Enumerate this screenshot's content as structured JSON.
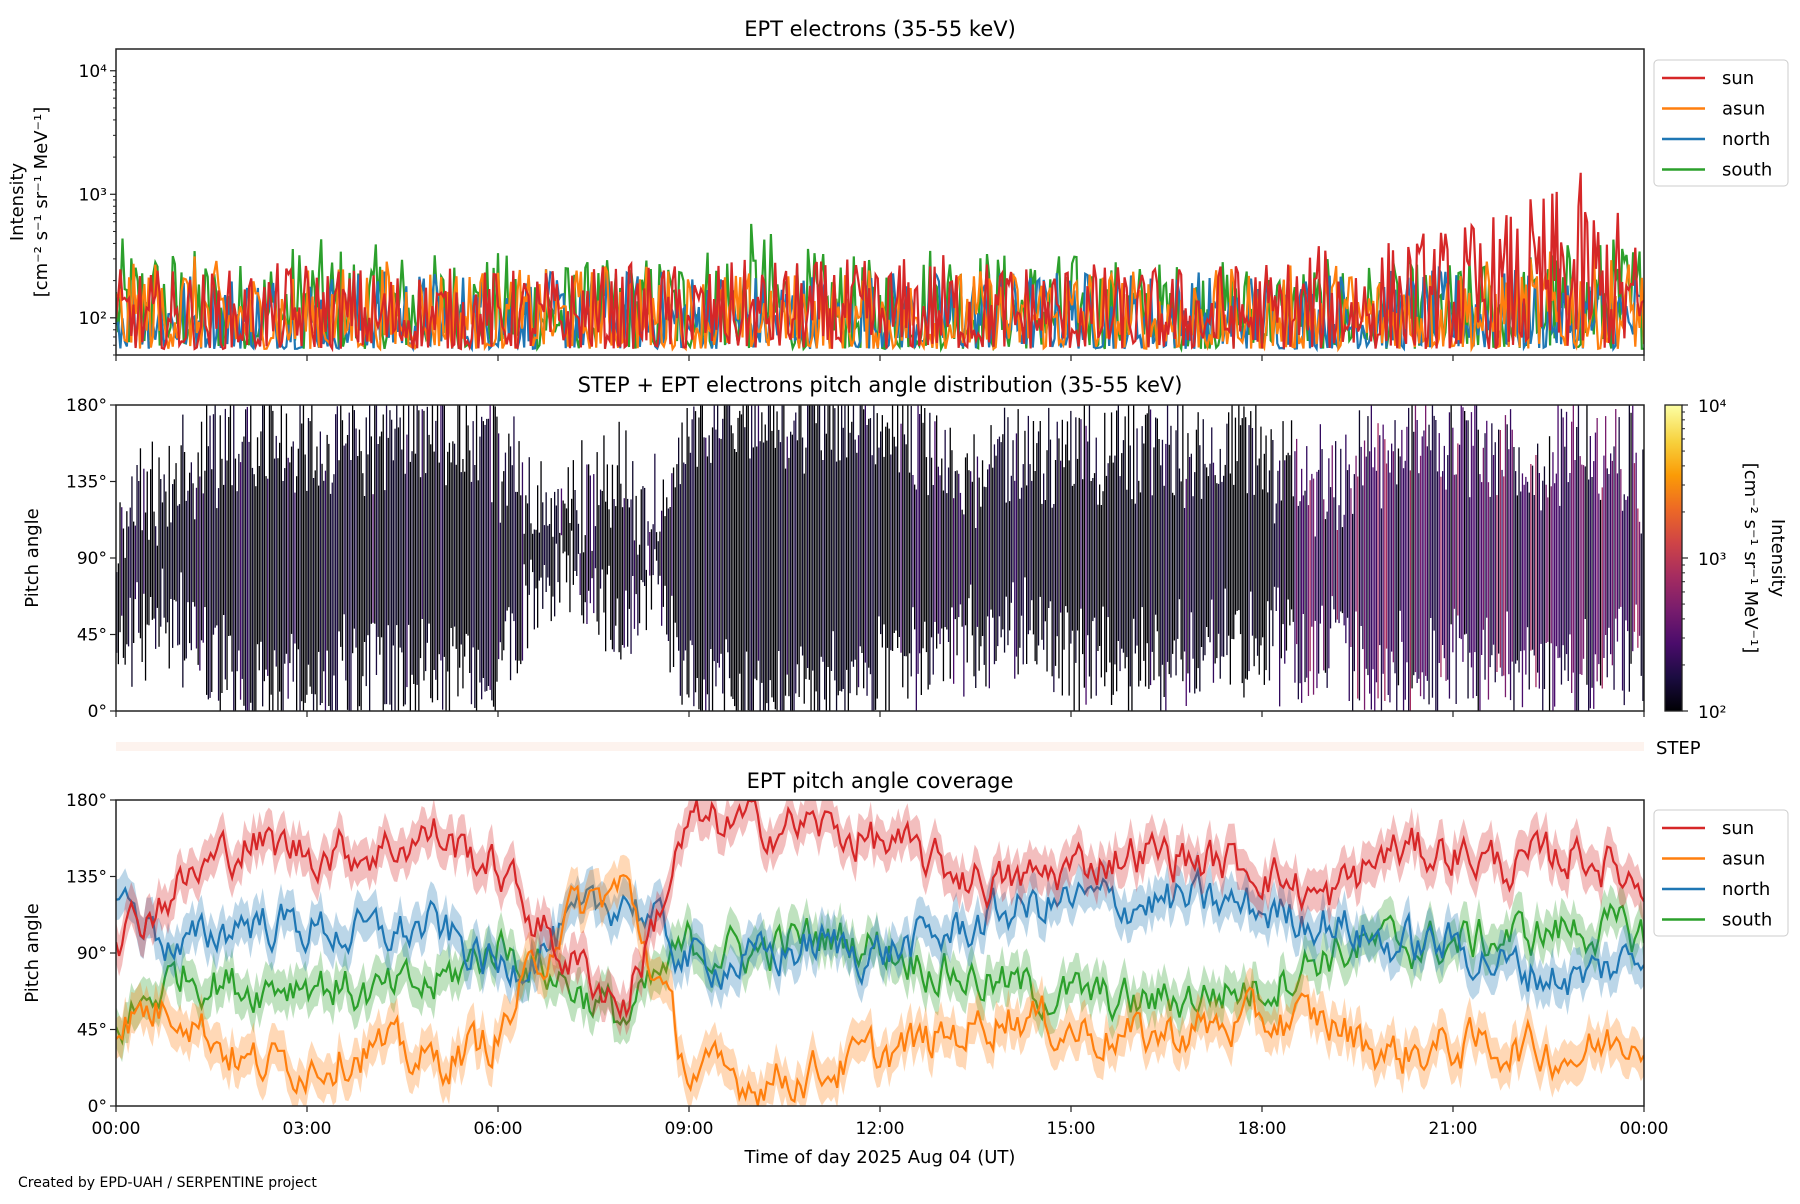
{
  "footer": "Created by EPD-UAH / SERPENTINE project",
  "xlabel": "Time of day 2025 Aug 04 (UT)",
  "x_ticks": [
    "00:00",
    "03:00",
    "06:00",
    "09:00",
    "12:00",
    "15:00",
    "18:00",
    "21:00",
    "00:00"
  ],
  "x_tick_hours": [
    0,
    3,
    6,
    9,
    12,
    15,
    18,
    21,
    24
  ],
  "colors": {
    "sun": "#d62728",
    "asun": "#ff7f0e",
    "north": "#1f77b4",
    "south": "#2ca02c"
  },
  "chart_data": [
    {
      "type": "line",
      "title": "EPT electrons (35-55 keV)",
      "ylabel": "Intensity",
      "ylabel_units": "[cm⁻² s⁻¹ sr⁻¹ MeV⁻¹]",
      "yscale": "log",
      "ylim": [
        50,
        15000
      ],
      "y_ticks": [
        {
          "value": 100,
          "label": "10²"
        },
        {
          "value": 1000,
          "label": "10³"
        },
        {
          "value": 10000,
          "label": "10⁴"
        }
      ],
      "x_hours": [
        0,
        1,
        2,
        3,
        4,
        5,
        6,
        7,
        8,
        9,
        10,
        11,
        12,
        13,
        14,
        15,
        16,
        17,
        18,
        19,
        20,
        21,
        22,
        23,
        24
      ],
      "legend": "right-top",
      "series": [
        {
          "name": "south",
          "values": [
            450,
            400,
            300,
            450,
            400,
            350,
            350,
            300,
            300,
            400,
            600,
            350,
            300,
            500,
            350,
            350,
            300,
            300,
            300,
            300,
            300,
            300,
            350,
            450,
            500
          ]
        },
        {
          "name": "north",
          "values": [
            250,
            250,
            250,
            250,
            250,
            250,
            250,
            250,
            250,
            250,
            250,
            250,
            250,
            250,
            250,
            250,
            250,
            250,
            250,
            250,
            250,
            250,
            250,
            250,
            250
          ]
        },
        {
          "name": "asun",
          "values": [
            250,
            350,
            250,
            250,
            300,
            300,
            250,
            250,
            300,
            250,
            250,
            250,
            250,
            250,
            250,
            300,
            250,
            250,
            250,
            300,
            250,
            300,
            300,
            400,
            300
          ]
        },
        {
          "name": "sun",
          "values": [
            250,
            250,
            250,
            300,
            260,
            260,
            250,
            260,
            280,
            280,
            300,
            300,
            300,
            350,
            300,
            300,
            260,
            280,
            300,
            400,
            450,
            600,
            800,
            1500,
            300
          ]
        }
      ],
      "legend_order": [
        "sun",
        "asun",
        "north",
        "south"
      ]
    },
    {
      "type": "heatmap",
      "title": "STEP + EPT electrons pitch angle distribution (35-55 keV)",
      "ylabel": "Pitch angle",
      "ylim": [
        0,
        180
      ],
      "y_ticks": [
        "0°",
        "45°",
        "90°",
        "135°",
        "180°"
      ],
      "colorbar": {
        "label": "Intensity",
        "units": "[cm⁻² s⁻¹ sr⁻¹ MeV⁻¹]",
        "scale": "log",
        "range": [
          100,
          10000
        ],
        "ticks": [
          {
            "value": 100,
            "label": "10²"
          },
          {
            "value": 1000,
            "label": "10³"
          },
          {
            "value": 10000,
            "label": "10⁴"
          }
        ],
        "colormap": "inferno"
      },
      "typical_intensity": 150,
      "step_label": "STEP"
    },
    {
      "type": "line",
      "title": "EPT pitch angle coverage",
      "ylabel": "Pitch angle",
      "ylim": [
        0,
        180
      ],
      "y_ticks": [
        "0°",
        "45°",
        "90°",
        "135°",
        "180°"
      ],
      "x_hours": [
        0,
        1,
        2,
        3,
        4,
        5,
        6,
        7,
        8,
        9,
        10,
        11,
        12,
        13,
        14,
        15,
        16,
        17,
        18,
        19,
        20,
        21,
        22,
        23,
        24
      ],
      "legend": "right-top",
      "series": [
        {
          "name": "south",
          "values": [
            45,
            80,
            70,
            75,
            65,
            70,
            95,
            75,
            50,
            95,
            90,
            100,
            95,
            80,
            70,
            65,
            60,
            65,
            70,
            90,
            95,
            95,
            100,
            105,
            100
          ]
        },
        {
          "name": "north",
          "values": [
            125,
            90,
            110,
            105,
            100,
            105,
            80,
            100,
            125,
            85,
            85,
            95,
            90,
            100,
            115,
            120,
            120,
            120,
            115,
            110,
            95,
            95,
            80,
            75,
            90
          ]
        },
        {
          "name": "asun",
          "values": [
            50,
            60,
            25,
            25,
            35,
            25,
            40,
            110,
            130,
            20,
            15,
            20,
            30,
            40,
            55,
            45,
            40,
            45,
            50,
            50,
            30,
            35,
            35,
            30,
            45
          ]
        },
        {
          "name": "sun",
          "values": [
            100,
            130,
            155,
            150,
            150,
            160,
            140,
            90,
            60,
            165,
            165,
            165,
            155,
            140,
            130,
            140,
            150,
            145,
            140,
            120,
            150,
            150,
            140,
            150,
            130
          ]
        }
      ],
      "legend_order": [
        "sun",
        "asun",
        "north",
        "south"
      ]
    }
  ]
}
